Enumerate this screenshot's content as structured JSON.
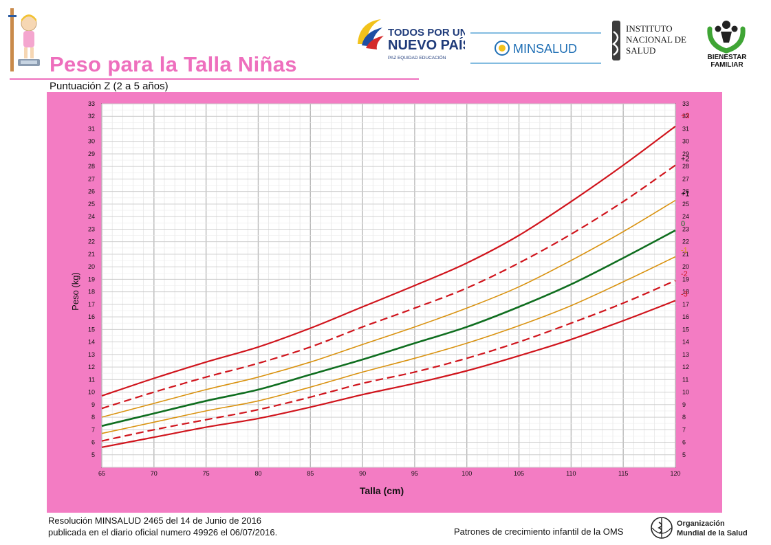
{
  "header": {
    "title": "Peso para la Talla Niñas",
    "subtitle": "Puntuación Z (2 a 5 años)"
  },
  "logos": {
    "government": {
      "line1": "TODOS POR UN",
      "line2": "NUEVO PAÍS",
      "tagline": "PAZ  EQUIDAD  EDUCACIÓN"
    },
    "ministry": "MINSALUD",
    "institute": {
      "line1": "INSTITUTO",
      "line2": "NACIONAL DE",
      "line3": "SALUD"
    },
    "bienestar": {
      "line1": "BIENESTAR",
      "line2": "FAMILIAR"
    },
    "who": {
      "line1": "Organización",
      "line2": "Mundial de la Salud"
    }
  },
  "footer": {
    "resolution_line1": "Resolución MINSALUD 2465 del 14 de Junio de 2016",
    "resolution_line2": "publicada en el diario oficial numero 49926 el 06/07/2016.",
    "who_note": "Patrones de crecimiento infantil de la OMS"
  },
  "colors": {
    "accent_pink": "#ee6fbd",
    "panel_pink": "#f37cc3",
    "red": "#d0141c",
    "orange": "#d9920f",
    "green": "#0f6e1f"
  },
  "chart_data": {
    "type": "line",
    "xlabel": "Talla (cm)",
    "ylabel": "Peso (kg)",
    "xlim": [
      65,
      120
    ],
    "ylim": [
      4,
      33
    ],
    "x_ticks": [
      65,
      70,
      75,
      80,
      85,
      90,
      95,
      100,
      105,
      110,
      115,
      120
    ],
    "y_ticks": [
      5,
      6,
      7,
      8,
      9,
      10,
      11,
      12,
      13,
      14,
      15,
      16,
      17,
      18,
      19,
      20,
      21,
      22,
      23,
      24,
      25,
      26,
      27,
      28,
      29,
      30,
      31,
      32,
      33
    ],
    "grid": true,
    "x": [
      65,
      70,
      75,
      80,
      85,
      90,
      95,
      100,
      105,
      110,
      115,
      120
    ],
    "series": [
      {
        "name": "+3",
        "color": "#d0141c",
        "dash": false,
        "values": [
          9.7,
          11.1,
          12.4,
          13.6,
          15.1,
          16.8,
          18.5,
          20.3,
          22.5,
          25.2,
          28.1,
          31.2
        ]
      },
      {
        "name": "+2",
        "color": "#d0141c",
        "dash": true,
        "values": [
          8.7,
          10.0,
          11.2,
          12.3,
          13.6,
          15.2,
          16.7,
          18.3,
          20.3,
          22.6,
          25.2,
          28.1
        ]
      },
      {
        "name": "+1",
        "color": "#d9920f",
        "dash": false,
        "values": [
          8.0,
          9.1,
          10.2,
          11.2,
          12.4,
          13.8,
          15.2,
          16.7,
          18.4,
          20.5,
          22.8,
          25.3
        ]
      },
      {
        "name": "0",
        "color": "#0f6e1f",
        "dash": false,
        "values": [
          7.3,
          8.3,
          9.3,
          10.2,
          11.4,
          12.6,
          13.9,
          15.2,
          16.8,
          18.6,
          20.7,
          22.9
        ]
      },
      {
        "name": "-1",
        "color": "#d9920f",
        "dash": false,
        "values": [
          6.7,
          7.6,
          8.5,
          9.3,
          10.4,
          11.6,
          12.7,
          13.9,
          15.3,
          16.9,
          18.8,
          20.8
        ]
      },
      {
        "name": "-2",
        "color": "#d0141c",
        "dash": true,
        "values": [
          6.1,
          7.0,
          7.8,
          8.6,
          9.6,
          10.7,
          11.6,
          12.7,
          14.0,
          15.5,
          17.1,
          18.9
        ]
      },
      {
        "name": "-3",
        "color": "#d0141c",
        "dash": false,
        "values": [
          5.6,
          6.4,
          7.2,
          7.9,
          8.8,
          9.8,
          10.7,
          11.7,
          12.9,
          14.2,
          15.7,
          17.3
        ]
      }
    ]
  }
}
